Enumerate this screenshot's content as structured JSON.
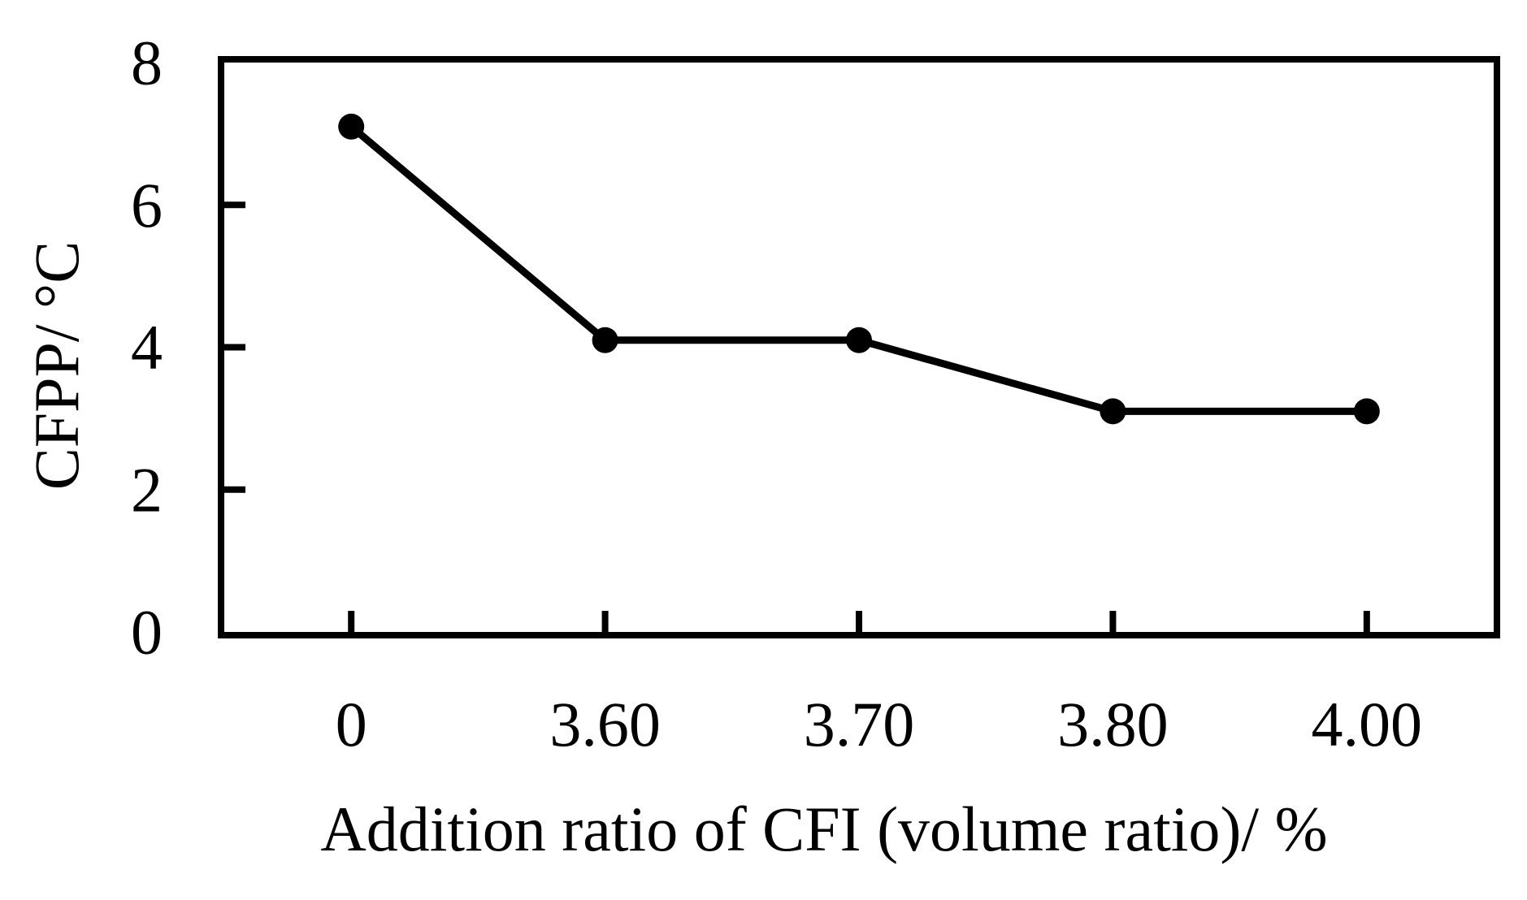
{
  "chart_data": {
    "type": "line",
    "title": "",
    "xlabel": "Addition ratio of CFI (volume ratio)/ %",
    "ylabel": "CFPP/ °C",
    "categories": [
      "0",
      "3.60",
      "3.70",
      "3.80",
      "4.00"
    ],
    "series": [
      {
        "name": "CFPP",
        "values": [
          7.1,
          4.1,
          4.1,
          3.1,
          3.1
        ]
      }
    ],
    "ylim": [
      0,
      8
    ],
    "y_ticks": [
      0,
      2,
      4,
      6,
      8
    ],
    "grid": "off",
    "legend": "none",
    "marker": "filled-circle",
    "colors": {
      "line": "#000000",
      "marker": "#000000",
      "axis": "#000000",
      "text": "#000000",
      "background": "#ffffff"
    }
  }
}
